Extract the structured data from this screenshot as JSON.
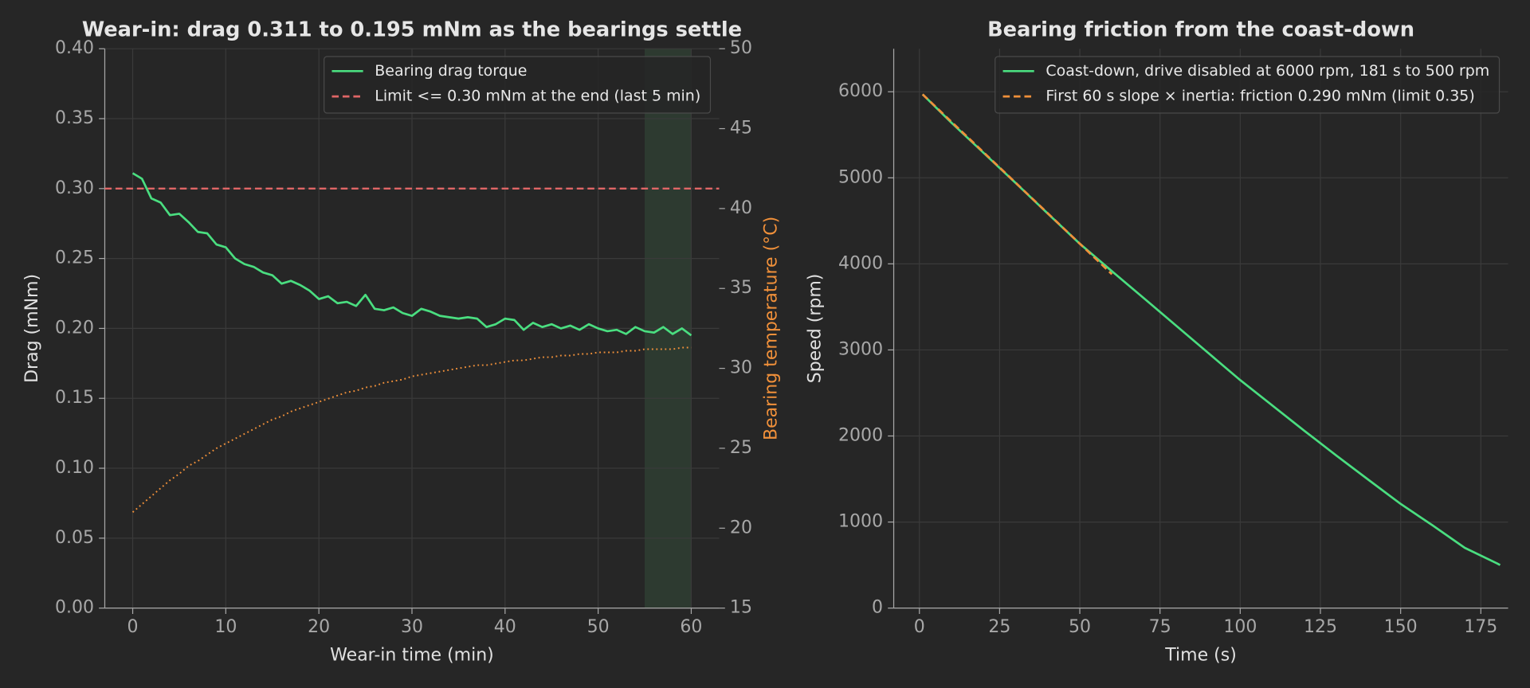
{
  "chart_data": [
    {
      "type": "line",
      "title": "Wear-in: drag 0.311 to 0.195 mNm as the bearings settle",
      "xlabel": "Wear-in time (min)",
      "ylabel": "Drag (mNm)",
      "y2label": "Bearing temperature (°C)",
      "xlim": [
        -3,
        63
      ],
      "ylim": [
        0,
        0.4
      ],
      "y2lim": [
        15,
        50
      ],
      "xticks": [
        0,
        10,
        20,
        30,
        40,
        50,
        60
      ],
      "yticks": [
        {
          "value": 0,
          "label": "0.00"
        },
        0.05,
        {
          "value": 0.1,
          "label": "0.10"
        },
        0.15,
        {
          "value": 0.2,
          "label": "0.20"
        },
        0.25,
        {
          "value": 0.3,
          "label": "0.30"
        },
        0.35,
        {
          "value": 0.4,
          "label": "0.40"
        }
      ],
      "y2ticks": [
        15,
        20,
        25,
        30,
        35,
        40,
        45,
        50
      ],
      "grid": true,
      "legend": "upper right",
      "shade": {
        "x": [
          55,
          60
        ],
        "color": "#3f6b4a"
      },
      "hline": {
        "name": "Limit <= 0.30 mNm at the end (last 5 min)",
        "value": 0.3,
        "color": "#e06666",
        "style": "dashed"
      },
      "x": [
        0,
        1,
        2,
        3,
        4,
        5,
        6,
        7,
        8,
        9,
        10,
        11,
        12,
        13,
        14,
        15,
        16,
        17,
        18,
        19,
        20,
        21,
        22,
        23,
        24,
        25,
        26,
        27,
        28,
        29,
        30,
        31,
        32,
        33,
        34,
        35,
        36,
        37,
        38,
        39,
        40,
        41,
        42,
        43,
        44,
        45,
        46,
        47,
        48,
        49,
        50,
        51,
        52,
        53,
        54,
        55,
        56,
        57,
        58,
        59,
        60
      ],
      "series": [
        {
          "name": "Bearing drag torque",
          "color": "#4ade80",
          "style": "solid",
          "values": [
            0.311,
            0.307,
            0.293,
            0.29,
            0.281,
            0.282,
            0.276,
            0.269,
            0.268,
            0.26,
            0.258,
            0.25,
            0.246,
            0.244,
            0.24,
            0.238,
            0.232,
            0.234,
            0.231,
            0.227,
            0.221,
            0.223,
            0.218,
            0.219,
            0.216,
            0.224,
            0.214,
            0.213,
            0.215,
            0.211,
            0.209,
            0.214,
            0.212,
            0.209,
            0.208,
            0.207,
            0.208,
            0.207,
            0.201,
            0.203,
            0.207,
            0.206,
            0.199,
            0.204,
            0.201,
            0.203,
            0.2,
            0.202,
            0.199,
            0.203,
            0.2,
            0.198,
            0.199,
            0.196,
            0.201,
            0.198,
            0.197,
            0.201,
            0.196,
            0.2,
            0.195
          ]
        },
        {
          "color": "#f0903a",
          "style": "dotted",
          "axis": "y2",
          "values": [
            21,
            21.5,
            22,
            22.5,
            23,
            23.4,
            23.9,
            24.2,
            24.6,
            25,
            25.3,
            25.6,
            25.9,
            26.2,
            26.5,
            26.8,
            27,
            27.3,
            27.5,
            27.7,
            27.9,
            28.1,
            28.3,
            28.5,
            28.6,
            28.8,
            28.9,
            29.1,
            29.2,
            29.3,
            29.5,
            29.6,
            29.7,
            29.8,
            29.9,
            30,
            30.1,
            30.2,
            30.2,
            30.3,
            30.4,
            30.5,
            30.5,
            30.6,
            30.7,
            30.7,
            30.8,
            30.8,
            30.9,
            30.9,
            31,
            31,
            31,
            31.1,
            31.1,
            31.2,
            31.2,
            31.2,
            31.2,
            31.3,
            31.3
          ]
        }
      ]
    },
    {
      "type": "line",
      "title": "Bearing friction from the coast-down",
      "xlabel": "Time (s)",
      "ylabel": "Speed (rpm)",
      "xlim": [
        -8,
        183.5
      ],
      "ylim": [
        0,
        6500
      ],
      "xticks": [
        0,
        25,
        50,
        75,
        100,
        125,
        150,
        175
      ],
      "yticks": [
        0,
        1000,
        2000,
        3000,
        4000,
        5000,
        6000
      ],
      "grid": true,
      "legend": "upper right",
      "series": [
        {
          "name": "Coast-down, drive disabled at 6000 rpm, 181 s to 500 rpm",
          "color": "#4ade80",
          "style": "solid",
          "x": [
            1,
            10,
            20,
            30,
            40,
            50,
            60,
            70,
            80,
            90,
            100,
            110,
            120,
            130,
            140,
            150,
            160,
            170,
            180,
            181
          ],
          "values": [
            5970,
            5640,
            5290,
            4940,
            4585,
            4234,
            3915,
            3600,
            3283,
            2966,
            2649,
            2355,
            2060,
            1772,
            1490,
            1211,
            960,
            700,
            520,
            500
          ]
        },
        {
          "name": "First 60 s slope × inertia: friction 0.290 mNm (limit 0.35)",
          "color": "#f0903a",
          "style": "dashed",
          "x": [
            1,
            60
          ],
          "values": [
            5970,
            3880
          ]
        }
      ]
    }
  ]
}
